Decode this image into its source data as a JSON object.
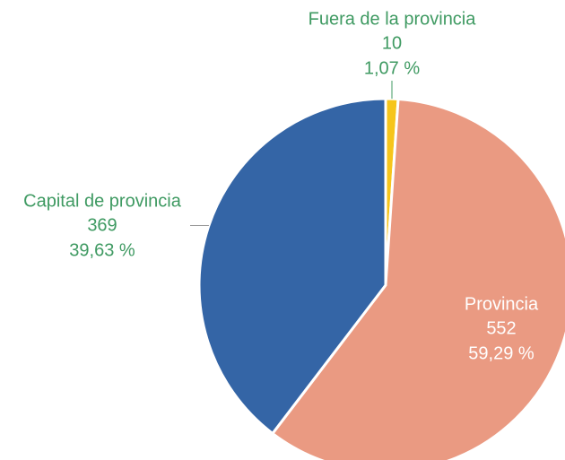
{
  "chart_data": {
    "type": "pie",
    "categories": [
      "Fuera de la provincia",
      "Provincia",
      "Capital de provincia"
    ],
    "values": [
      10,
      552,
      369
    ],
    "percent_labels": [
      "1,07 %",
      "59,29 %",
      "39,63 %"
    ],
    "colors": [
      "#f6c51b",
      "#ea9a82",
      "#3465a6"
    ],
    "label_color": "#3f9a62"
  }
}
